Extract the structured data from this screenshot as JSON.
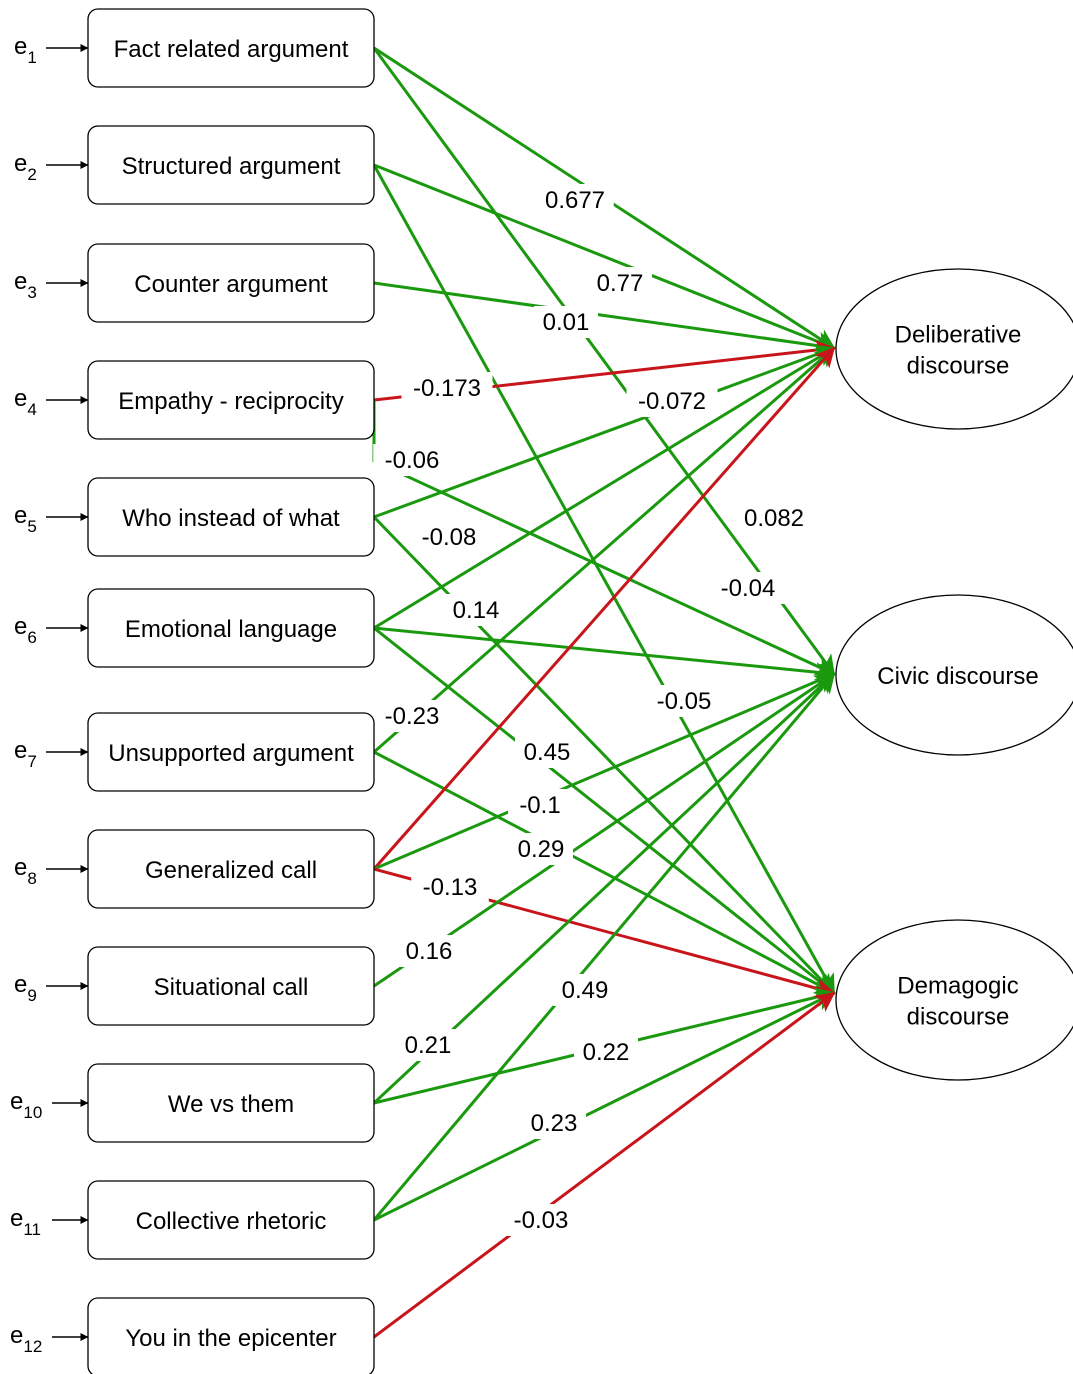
{
  "colors": {
    "positive": "#1a990f",
    "negative": "#c8151b",
    "stroke": "#000000",
    "label_bg": "#ffffff"
  },
  "predictors": [
    {
      "id": "p1",
      "label": "Fact related argument",
      "error": {
        "base": "e",
        "sub": "1"
      }
    },
    {
      "id": "p2",
      "label": "Structured argument",
      "error": {
        "base": "e",
        "sub": "2"
      }
    },
    {
      "id": "p3",
      "label": "Counter argument",
      "error": {
        "base": "e",
        "sub": "3"
      }
    },
    {
      "id": "p4",
      "label": "Empathy - reciprocity",
      "error": {
        "base": "e",
        "sub": "4"
      }
    },
    {
      "id": "p5",
      "label": "Who instead of what",
      "error": {
        "base": "e",
        "sub": "5"
      }
    },
    {
      "id": "p6",
      "label": "Emotional language",
      "error": {
        "base": "e",
        "sub": "6"
      }
    },
    {
      "id": "p7",
      "label": "Unsupported argument",
      "error": {
        "base": "e",
        "sub": "7"
      }
    },
    {
      "id": "p8",
      "label": "Generalized call",
      "error": {
        "base": "e",
        "sub": "8"
      }
    },
    {
      "id": "p9",
      "label": "Situational call",
      "error": {
        "base": "e",
        "sub": "9"
      }
    },
    {
      "id": "p10",
      "label": "We vs them",
      "error": {
        "base": "e",
        "sub": "10"
      }
    },
    {
      "id": "p11",
      "label": "Collective rhetoric",
      "error": {
        "base": "e",
        "sub": "11"
      }
    },
    {
      "id": "p12",
      "label": "You in the epicenter",
      "error": {
        "base": "e",
        "sub": "12"
      }
    }
  ],
  "outcomes": [
    {
      "id": "delib",
      "lines": [
        "Deliberative",
        "discourse"
      ]
    },
    {
      "id": "civic",
      "lines": [
        "Civic discourse"
      ]
    },
    {
      "id": "demag",
      "lines": [
        "Demagogic",
        "discourse"
      ]
    }
  ],
  "paths": [
    {
      "from": "p1",
      "to": "delib",
      "coef": 0.677,
      "label": "0.677",
      "sign": "positive"
    },
    {
      "from": "p1",
      "to": "civic",
      "coef": -0.05,
      "label": "-0.05",
      "sign": "positive"
    },
    {
      "from": "p2",
      "to": "delib",
      "coef": 0.77,
      "label": "0.77",
      "sign": "positive"
    },
    {
      "from": "p2",
      "to": "demag",
      "coef": -0.04,
      "label": "-0.04",
      "sign": "positive"
    },
    {
      "from": "p3",
      "to": "delib",
      "coef": 0.01,
      "label": "0.01",
      "sign": "positive"
    },
    {
      "from": "p4",
      "to": "delib",
      "coef": -0.173,
      "label": "-0.173",
      "sign": "negative"
    },
    {
      "from": "p4",
      "to": "civic",
      "coef": -0.06,
      "label": "-0.06",
      "sign": "positive"
    },
    {
      "from": "p5",
      "to": "delib",
      "coef": -0.072,
      "label": "-0.072",
      "sign": "positive"
    },
    {
      "from": "p5",
      "to": "demag",
      "coef": 0.14,
      "label": "0.14",
      "sign": "positive"
    },
    {
      "from": "p6",
      "to": "delib",
      "coef": -0.08,
      "label": "-0.08",
      "sign": "positive"
    },
    {
      "from": "p6",
      "to": "civic",
      "coef": null,
      "label": "",
      "sign": "positive"
    },
    {
      "from": "p6",
      "to": "demag",
      "coef": 0.45,
      "label": "0.45",
      "sign": "positive"
    },
    {
      "from": "p7",
      "to": "delib",
      "coef": -0.23,
      "label": "-0.23",
      "sign": "positive"
    },
    {
      "from": "p7",
      "to": "demag",
      "coef": 0.29,
      "label": "0.29",
      "sign": "positive"
    },
    {
      "from": "p8",
      "to": "delib",
      "coef": 0.082,
      "label": "0.082",
      "sign": "negative"
    },
    {
      "from": "p8",
      "to": "civic",
      "coef": -0.1,
      "label": "-0.1",
      "sign": "positive"
    },
    {
      "from": "p8",
      "to": "demag",
      "coef": -0.13,
      "label": "-0.13",
      "sign": "negative"
    },
    {
      "from": "p9",
      "to": "civic",
      "coef": 0.16,
      "label": "0.16",
      "sign": "positive"
    },
    {
      "from": "p10",
      "to": "civic",
      "coef": 0.21,
      "label": "0.21",
      "sign": "positive"
    },
    {
      "from": "p10",
      "to": "demag",
      "coef": 0.22,
      "label": "0.22",
      "sign": "positive"
    },
    {
      "from": "p11",
      "to": "civic",
      "coef": 0.49,
      "label": "0.49",
      "sign": "positive"
    },
    {
      "from": "p11",
      "to": "demag",
      "coef": 0.23,
      "label": "0.23",
      "sign": "positive"
    },
    {
      "from": "p12",
      "to": "demag",
      "coef": -0.03,
      "label": "-0.03",
      "sign": "negative"
    }
  ]
}
